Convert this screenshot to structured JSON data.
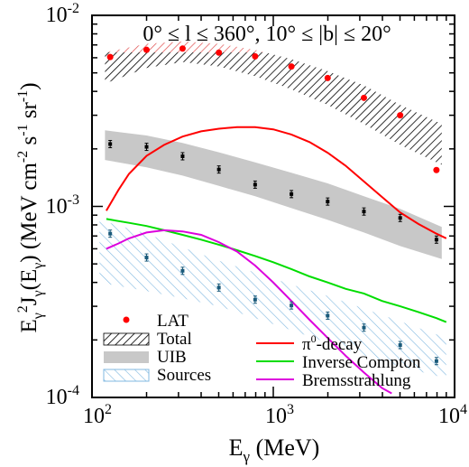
{
  "chart_data": {
    "type": "line",
    "title": "0° ≤ l ≤ 360°, 10° ≤ |b| ≤ 20°",
    "xlabel": {
      "base": "E",
      "sub": "γ",
      "rest": " (MeV)"
    },
    "ylabel": {
      "e": "E",
      "e_sub": "γ",
      "e_sup": "2",
      "j": "J",
      "j_sub": "γ",
      "arg_open": "(E",
      "arg_sub": "γ",
      "arg_close": ")",
      "units": " (MeV cm",
      "u1": "-2",
      "s": " s",
      "u2": "-1",
      "sr": " sr",
      "u3": "-1",
      "close": ")"
    },
    "xscale": "log",
    "yscale": "log",
    "xlim": [
      100,
      10000
    ],
    "ylim": [
      0.0001,
      0.01
    ],
    "x_ticks": [
      {
        "mant": "10",
        "exp": "2"
      },
      {
        "mant": "10",
        "exp": "3"
      },
      {
        "mant": "10",
        "exp": "4"
      }
    ],
    "y_ticks": [
      {
        "mant": "10",
        "exp": "-4"
      },
      {
        "mant": "10",
        "exp": "-3"
      },
      {
        "mant": "10",
        "exp": "-2"
      }
    ],
    "legend": {
      "lat": "LAT",
      "total": "Total",
      "uib": "UIB",
      "sources": "Sources",
      "pi0_sym": "π",
      "pi0_sup": "0",
      "pi0_rest": "-decay",
      "ic": "Inverse Compton",
      "brems": "Bremsstrahlung"
    },
    "colors": {
      "lat": "#ff0000",
      "total": "#000000",
      "total_fill": "#e05050",
      "uib": "#c8c8c8",
      "sources": "#80b8e0",
      "sources_points": "#1a5a7a",
      "pi0": "#ff0000",
      "ic": "#00dd00",
      "brems": "#dd00dd"
    },
    "lat_points": {
      "x": [
        126,
        200,
        316,
        501,
        794,
        1259,
        1995,
        3162,
        5012,
        7943
      ],
      "y": [
        0.00605,
        0.0066,
        0.0067,
        0.00638,
        0.0061,
        0.0054,
        0.0047,
        0.0037,
        0.003,
        0.00155
      ]
    },
    "total_band": {
      "x": [
        118,
        200,
        316,
        501,
        794,
        1259,
        1995,
        3162,
        5012,
        8500
      ],
      "lower": [
        0.0044,
        0.0053,
        0.0057,
        0.0054,
        0.0048,
        0.0041,
        0.0034,
        0.0027,
        0.0021,
        0.00165
      ],
      "upper": [
        0.0064,
        0.0071,
        0.0073,
        0.0071,
        0.0066,
        0.0059,
        0.0051,
        0.0043,
        0.0034,
        0.0027
      ]
    },
    "uib_band": {
      "x": [
        118,
        200,
        316,
        501,
        794,
        1259,
        1995,
        3162,
        5012,
        8500
      ],
      "lower": [
        0.00175,
        0.0016,
        0.00145,
        0.00128,
        0.00113,
        0.00098,
        0.00085,
        0.00073,
        0.00062,
        0.00053
      ],
      "upper": [
        0.0025,
        0.00235,
        0.00215,
        0.00192,
        0.0017,
        0.0015,
        0.00132,
        0.00113,
        0.00097,
        0.00078
      ]
    },
    "uib_points": {
      "x": [
        126,
        200,
        316,
        501,
        794,
        1259,
        1995,
        3162,
        5012,
        7943
      ],
      "y": [
        0.00212,
        0.00205,
        0.00183,
        0.00156,
        0.0013,
        0.00116,
        0.00106,
        0.00094,
        0.00087,
        0.00067
      ]
    },
    "sources_band": {
      "x": [
        110,
        200,
        316,
        501,
        794,
        1259,
        1995,
        3162,
        5012,
        9000
      ],
      "lower": [
        0.0004,
        0.00036,
        0.00033,
        0.0003,
        0.00026,
        0.000225,
        0.000193,
        0.000166,
        0.000145,
        0.000126
      ],
      "upper": [
        0.00085,
        0.00072,
        0.00061,
        0.00052,
        0.00045,
        0.00039,
        0.00034,
        0.000292,
        0.00025,
        0.000205
      ]
    },
    "sources_points": {
      "x": [
        126,
        200,
        316,
        501,
        794,
        1259,
        1995,
        3162,
        5012,
        7943
      ],
      "y": [
        0.00072,
        0.00054,
        0.00046,
        0.000376,
        0.000325,
        0.000303,
        0.000268,
        0.000232,
        0.000188,
        0.000155
      ]
    },
    "series": [
      {
        "key": "pi0",
        "x": [
          120,
          140,
          160,
          200,
          250,
          316,
          400,
          501,
          631,
          794,
          1000,
          1259,
          1585,
          1995,
          2512,
          3162,
          3981,
          5012,
          6310,
          7943,
          9000
        ],
        "y": [
          0.00095,
          0.00122,
          0.00148,
          0.00184,
          0.0021,
          0.00232,
          0.00247,
          0.00255,
          0.0026,
          0.0026,
          0.00253,
          0.00238,
          0.00217,
          0.00191,
          0.00163,
          0.00135,
          0.00112,
          0.00093,
          0.00081,
          0.00072,
          0.00068
        ]
      },
      {
        "key": "ic",
        "x": [
          120,
          160,
          200,
          250,
          316,
          400,
          501,
          631,
          794,
          1000,
          1259,
          1585,
          1995,
          2512,
          3162,
          3981,
          5012,
          6310,
          7943,
          9000
        ],
        "y": [
          0.00086,
          0.00082,
          0.00079,
          0.00075,
          0.00071,
          0.00067,
          0.00063,
          0.00059,
          0.00055,
          0.00051,
          0.00047,
          0.00043,
          0.0004,
          0.00037,
          0.00035,
          0.00032,
          0.0003,
          0.00028,
          0.00026,
          0.000248
        ]
      },
      {
        "key": "brems",
        "x": [
          120,
          140,
          160,
          200,
          250,
          316,
          400,
          501,
          631,
          794,
          1000,
          1259,
          1585,
          1995,
          2512,
          3162,
          3981,
          4500
        ],
        "y": [
          0.0006,
          0.00064,
          0.00068,
          0.00073,
          0.00075,
          0.00074,
          0.00071,
          0.00065,
          0.00058,
          0.00049,
          0.0004,
          0.00032,
          0.000255,
          0.000205,
          0.000165,
          0.000135,
          0.000112,
          0.000105
        ]
      }
    ]
  }
}
